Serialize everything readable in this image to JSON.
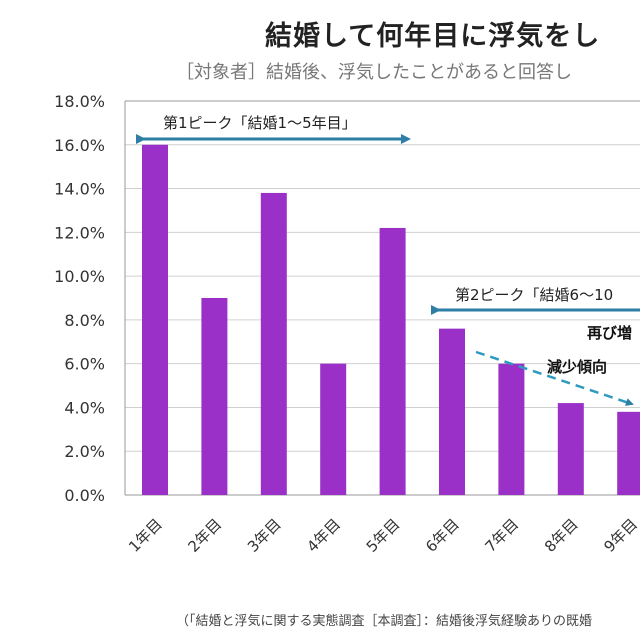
{
  "chart_data": {
    "type": "bar",
    "title": "結婚して何年目に浮気をし",
    "subtitle": "［対象者］結婚後、浮気したことがあると回答し",
    "xlabel": "",
    "ylabel": "",
    "categories": [
      "1年目",
      "2年目",
      "3年目",
      "4年目",
      "5年目",
      "6年目",
      "7年目",
      "8年目",
      "9年目"
    ],
    "values": [
      16.0,
      9.0,
      13.8,
      6.0,
      12.2,
      7.6,
      6.0,
      4.2,
      3.8
    ],
    "ylim": [
      0,
      18
    ],
    "yticks": [
      "0.0%",
      "2.0%",
      "4.0%",
      "6.0%",
      "8.0%",
      "10.0%",
      "12.0%",
      "14.0%",
      "16.0%",
      "18.0%"
    ],
    "grid": true,
    "bar_color": "#9b30c8",
    "arrow_color": "#2e7ea6",
    "annotations": {
      "peak1": "第1ピーク「結婚1～5年目」",
      "peak2": "第2ピーク「結婚6～10",
      "increase": "再び増",
      "decrease": "減少傾向"
    },
    "footer": "（「結婚と浮気に関する実態調査［本調査］：結婚後浮気経験ありの既婚"
  }
}
